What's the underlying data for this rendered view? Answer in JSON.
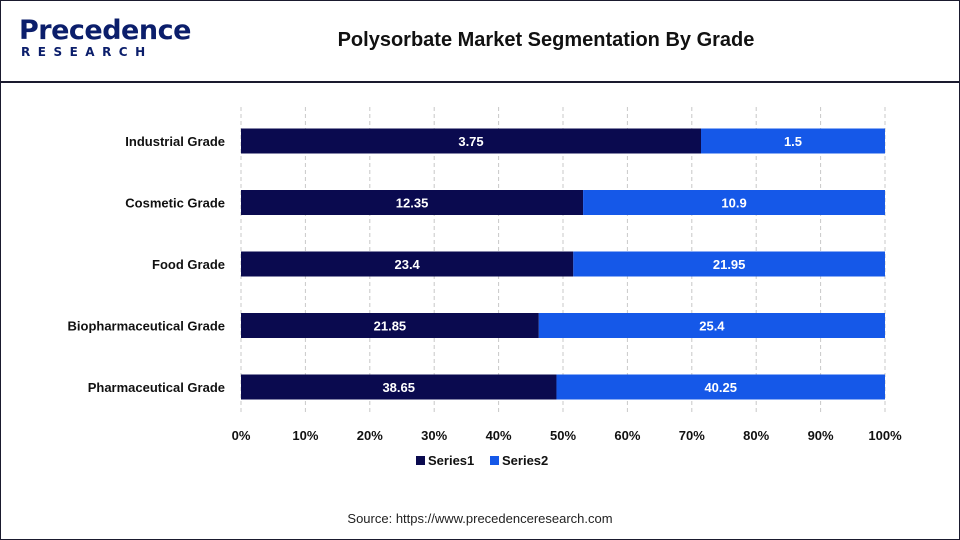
{
  "header": {
    "logo_word": "Precedence",
    "logo_sub": "RESEARCH",
    "title": "Polysorbate Market Segmentation By Grade"
  },
  "footer": {
    "source": "Source: https://www.precedenceresearch.com"
  },
  "colors": {
    "series1": "#0a0a4f",
    "series2": "#1558e8",
    "brand": "#0b1e6b"
  },
  "chart_data": {
    "type": "bar",
    "orientation": "horizontal",
    "stacking": "percent",
    "categories": [
      "Industrial Grade",
      "Cosmetic Grade",
      "Food Grade",
      "Biopharmaceutical Grade",
      "Pharmaceutical Grade"
    ],
    "series": [
      {
        "name": "Series1",
        "values": [
          3.75,
          12.35,
          23.4,
          21.85,
          38.65
        ]
      },
      {
        "name": "Series2",
        "values": [
          1.5,
          10.9,
          21.95,
          25.4,
          40.25
        ]
      }
    ],
    "x_ticks": [
      "0%",
      "10%",
      "20%",
      "30%",
      "40%",
      "50%",
      "60%",
      "70%",
      "80%",
      "90%",
      "100%"
    ],
    "xlim": [
      0,
      100
    ],
    "grid": "vertical dashed",
    "legend_position": "bottom"
  }
}
